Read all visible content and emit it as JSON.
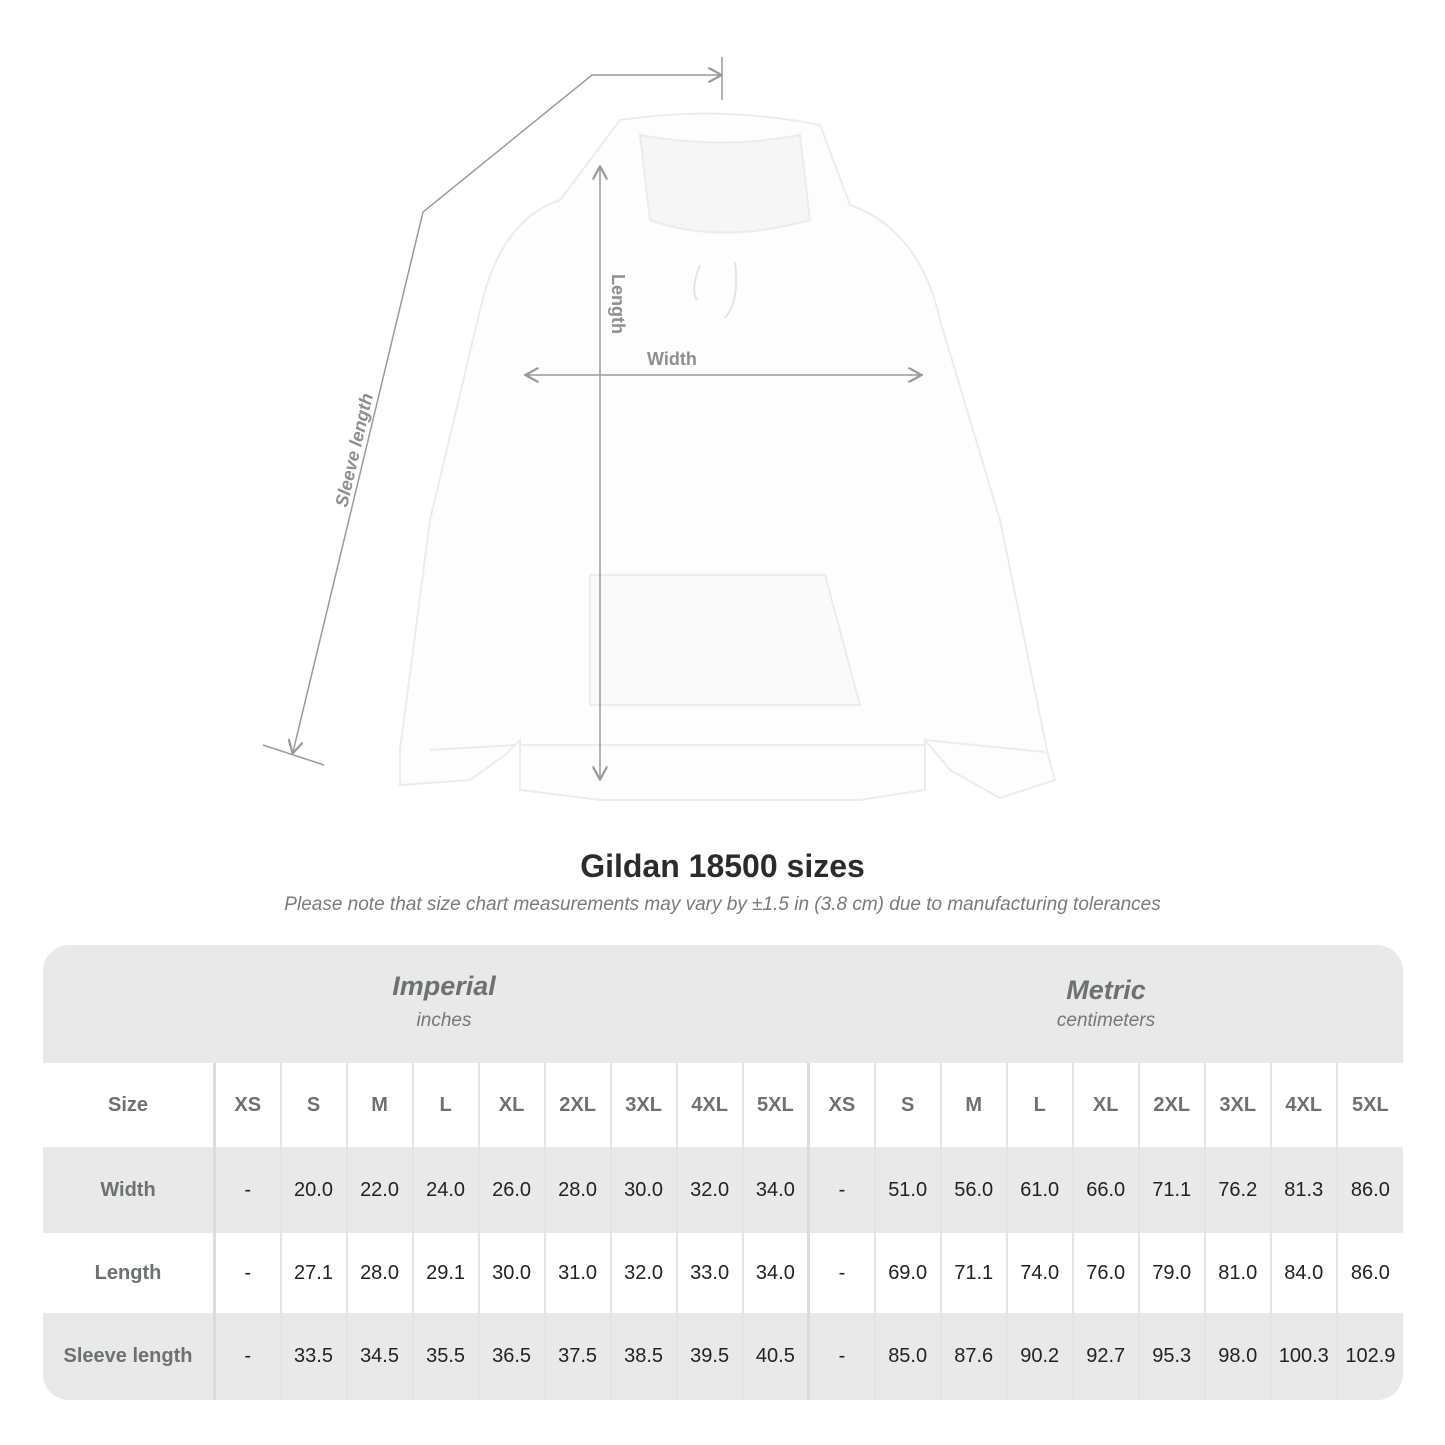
{
  "illustration": {
    "labels": {
      "sleeve": "Sleeve length",
      "length": "Length",
      "width": "Width"
    },
    "line_color": "#9a9a9a"
  },
  "title": "Gildan 18500 sizes",
  "subtitle": "Please note that size chart measurements may vary by ±1.5 in (3.8 cm) due to manufacturing tolerances",
  "table": {
    "imperial": {
      "heading": "Imperial",
      "unit": "inches"
    },
    "metric": {
      "heading": "Metric",
      "unit": "centimeters"
    },
    "size_label": "Size",
    "sizes": [
      "XS",
      "S",
      "M",
      "L",
      "XL",
      "2XL",
      "3XL",
      "4XL",
      "5XL"
    ],
    "rows": [
      {
        "label": "Width",
        "imperial": [
          "-",
          "20.0",
          "22.0",
          "24.0",
          "26.0",
          "28.0",
          "30.0",
          "32.0",
          "34.0"
        ],
        "metric": [
          "-",
          "51.0",
          "56.0",
          "61.0",
          "66.0",
          "71.1",
          "76.2",
          "81.3",
          "86.0"
        ]
      },
      {
        "label": "Length",
        "imperial": [
          "-",
          "27.1",
          "28.0",
          "29.1",
          "30.0",
          "31.0",
          "32.0",
          "33.0",
          "34.0"
        ],
        "metric": [
          "-",
          "69.0",
          "71.1",
          "74.0",
          "76.0",
          "79.0",
          "81.0",
          "84.0",
          "86.0"
        ]
      },
      {
        "label": "Sleeve length",
        "imperial": [
          "-",
          "33.5",
          "34.5",
          "35.5",
          "36.5",
          "37.5",
          "38.5",
          "39.5",
          "40.5"
        ],
        "metric": [
          "-",
          "85.0",
          "87.6",
          "90.2",
          "92.7",
          "95.3",
          "98.0",
          "100.3",
          "102.9"
        ]
      }
    ],
    "colors": {
      "band": "#e9e9e9",
      "header_text": "#6d7172"
    }
  }
}
